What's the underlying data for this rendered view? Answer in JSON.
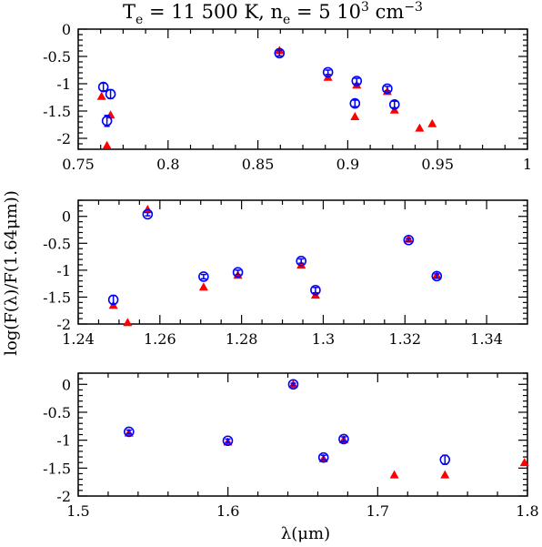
{
  "title": {
    "text": "T",
    "te_sub": "e",
    "te_value": " = 11 500 K, n",
    "ne_sub": "e",
    "ne_value": " = 5 10",
    "ne_exp": "3",
    "unit": " cm",
    "unit_exp": "−3"
  },
  "ylabel": "log(F(λ)/F(1.64μm))",
  "xlabel": "λ(μm)",
  "colors": {
    "observed": "#0000ff",
    "model": "#ff0000",
    "axes": "#000000"
  },
  "chart_data": [
    {
      "type": "scatter",
      "xlim": [
        0.75,
        1.0
      ],
      "ylim": [
        -2.2,
        0
      ],
      "xticks": [
        0.75,
        0.8,
        0.85,
        0.9,
        0.95,
        1.0
      ],
      "xtick_labels": [
        "0.75",
        "0.8",
        "0.85",
        "0.9",
        "0.95",
        "1"
      ],
      "yticks": [
        0,
        -0.5,
        -1,
        -1.5,
        -2
      ],
      "ytick_labels": [
        "0",
        "-0.5",
        "-1",
        "-1.5",
        "-2"
      ],
      "observed": [
        {
          "x": 0.764,
          "y": -1.06,
          "err": 0.07
        },
        {
          "x": 0.766,
          "y": -1.68,
          "err": 0.1
        },
        {
          "x": 0.768,
          "y": -1.19,
          "err": 0.08
        },
        {
          "x": 0.862,
          "y": -0.44,
          "err": 0.05
        },
        {
          "x": 0.889,
          "y": -0.79,
          "err": 0.04
        },
        {
          "x": 0.904,
          "y": -1.36,
          "err": 0.06
        },
        {
          "x": 0.905,
          "y": -0.95,
          "err": 0.05
        },
        {
          "x": 0.922,
          "y": -1.09,
          "err": 0.04
        },
        {
          "x": 0.926,
          "y": -1.38,
          "err": 0.06
        }
      ],
      "model": [
        {
          "x": 0.763,
          "y": -1.23
        },
        {
          "x": 0.766,
          "y": -2.13
        },
        {
          "x": 0.768,
          "y": -1.57
        },
        {
          "x": 0.862,
          "y": -0.39
        },
        {
          "x": 0.889,
          "y": -0.88
        },
        {
          "x": 0.904,
          "y": -1.6
        },
        {
          "x": 0.905,
          "y": -1.02
        },
        {
          "x": 0.922,
          "y": -1.14
        },
        {
          "x": 0.926,
          "y": -1.48
        },
        {
          "x": 0.94,
          "y": -1.81
        },
        {
          "x": 0.947,
          "y": -1.73
        }
      ]
    },
    {
      "type": "scatter",
      "xlim": [
        1.24,
        1.35
      ],
      "ylim": [
        -2,
        0.3
      ],
      "xticks": [
        1.24,
        1.26,
        1.28,
        1.3,
        1.32,
        1.34
      ],
      "xtick_labels": [
        "1.24",
        "1.26",
        "1.28",
        "1.3",
        "1.32",
        "1.34"
      ],
      "yticks": [
        0,
        -0.5,
        -1,
        -1.5,
        -2
      ],
      "ytick_labels": [
        "0",
        "-0.5",
        "-1",
        "-1.5",
        "-2"
      ],
      "observed": [
        {
          "x": 1.2486,
          "y": -1.55,
          "err": 0.08
        },
        {
          "x": 1.257,
          "y": 0.04,
          "err": 0.03
        },
        {
          "x": 1.2707,
          "y": -1.12,
          "err": 0.04
        },
        {
          "x": 1.2791,
          "y": -1.04,
          "err": 0.04
        },
        {
          "x": 1.2946,
          "y": -0.83,
          "err": 0.04
        },
        {
          "x": 1.2981,
          "y": -1.37,
          "err": 0.05
        },
        {
          "x": 1.3209,
          "y": -0.44,
          "err": 0.03
        },
        {
          "x": 1.3278,
          "y": -1.11,
          "err": 0.04
        }
      ],
      "model": [
        {
          "x": 1.2486,
          "y": -1.65
        },
        {
          "x": 1.2521,
          "y": -1.97
        },
        {
          "x": 1.257,
          "y": 0.13
        },
        {
          "x": 1.2707,
          "y": -1.31
        },
        {
          "x": 1.2791,
          "y": -1.09
        },
        {
          "x": 1.2946,
          "y": -0.9
        },
        {
          "x": 1.2981,
          "y": -1.46
        },
        {
          "x": 1.3209,
          "y": -0.42
        },
        {
          "x": 1.3278,
          "y": -1.09
        }
      ]
    },
    {
      "type": "scatter",
      "xlim": [
        1.5,
        1.8
      ],
      "ylim": [
        -2,
        0.2
      ],
      "xticks": [
        1.5,
        1.6,
        1.7,
        1.8
      ],
      "xtick_labels": [
        "1.5",
        "1.6",
        "1.7",
        "1.8"
      ],
      "yticks": [
        0,
        -0.5,
        -1,
        -1.5,
        -2
      ],
      "ytick_labels": [
        "0",
        "-0.5",
        "-1",
        "-1.5",
        "-2"
      ],
      "observed": [
        {
          "x": 1.5339,
          "y": -0.85,
          "err": 0.03
        },
        {
          "x": 1.5999,
          "y": -1.01,
          "err": 0.03
        },
        {
          "x": 1.6436,
          "y": 0.0,
          "err": 0.02
        },
        {
          "x": 1.6638,
          "y": -1.31,
          "err": 0.04
        },
        {
          "x": 1.6773,
          "y": -0.98,
          "err": 0.04
        },
        {
          "x": 1.7449,
          "y": -1.35,
          "err": 0.08
        }
      ],
      "model": [
        {
          "x": 1.5339,
          "y": -0.87
        },
        {
          "x": 1.5999,
          "y": -1.03
        },
        {
          "x": 1.6436,
          "y": 0.0
        },
        {
          "x": 1.6638,
          "y": -1.33
        },
        {
          "x": 1.6773,
          "y": -0.99
        },
        {
          "x": 1.7111,
          "y": -1.62
        },
        {
          "x": 1.7449,
          "y": -1.62
        },
        {
          "x": 1.798,
          "y": -1.4
        }
      ]
    }
  ]
}
